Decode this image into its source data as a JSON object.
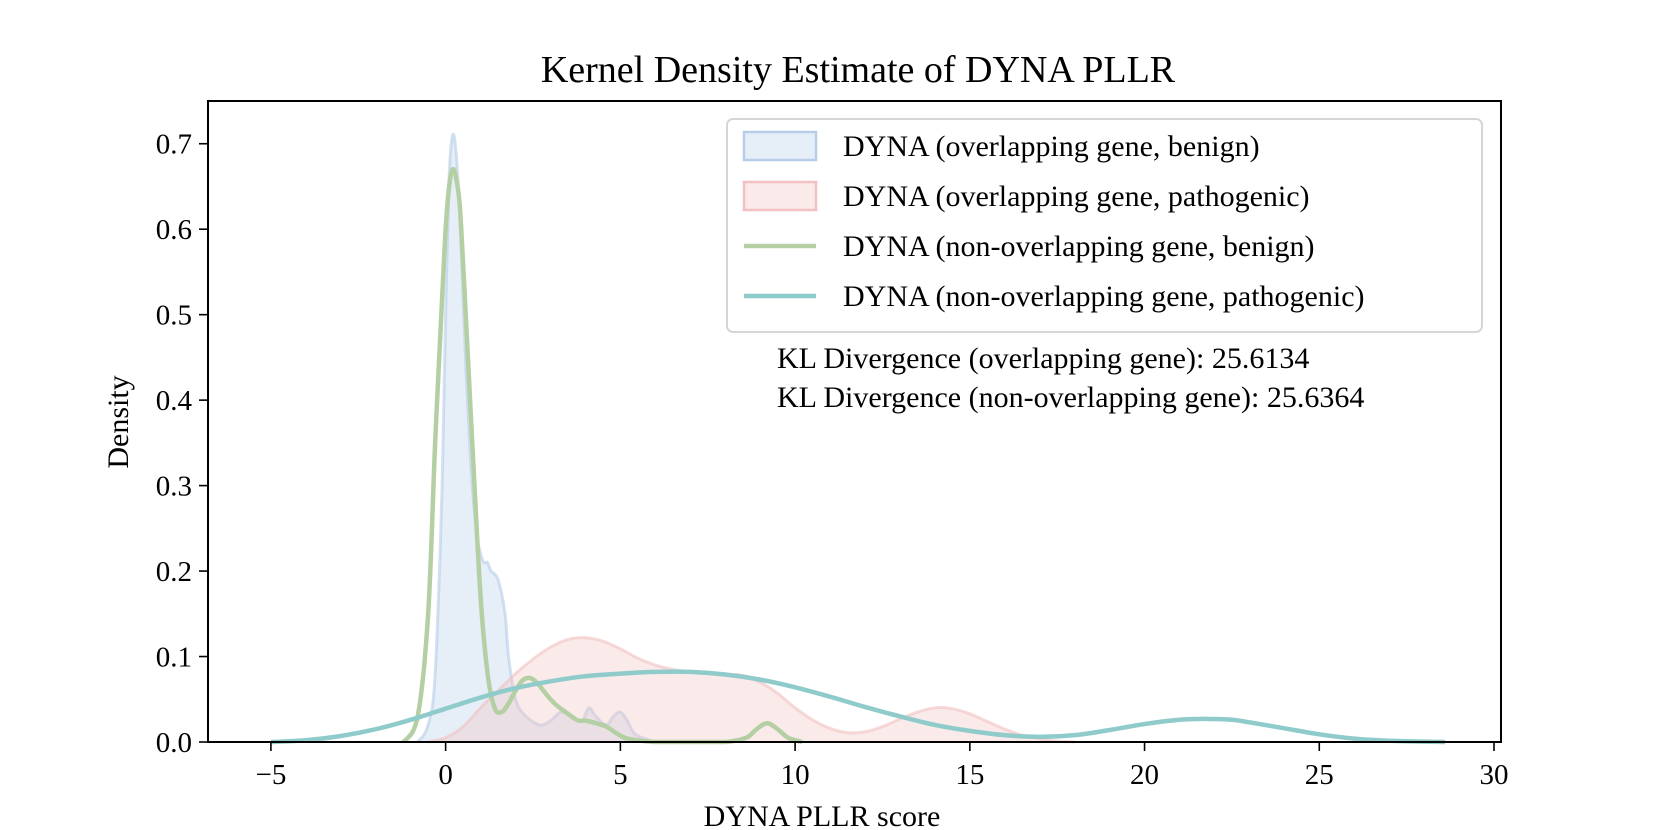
{
  "chart_data": {
    "type": "area",
    "title": "Kernel Density Estimate of DYNA PLLR",
    "xlabel": "DYNA PLLR score",
    "ylabel": "Density",
    "xlim": [
      -6.8,
      30.2
    ],
    "ylim": [
      0,
      0.75
    ],
    "xticks": [
      -5,
      0,
      5,
      10,
      15,
      20,
      25,
      30
    ],
    "yticks": [
      0.0,
      0.1,
      0.2,
      0.3,
      0.4,
      0.5,
      0.6,
      0.7
    ],
    "xtick_labels": [
      "−5",
      "0",
      "5",
      "10",
      "15",
      "20",
      "25",
      "30"
    ],
    "ytick_labels": [
      "0.0",
      "0.1",
      "0.2",
      "0.3",
      "0.4",
      "0.5",
      "0.6",
      "0.7"
    ],
    "grid": false,
    "legend_position": "top-right",
    "annotations": [
      "KL Divergence (overlapping gene): 25.6134",
      "KL Divergence (non-overlapping gene): 25.6364"
    ],
    "series": [
      {
        "name": "DYNA (overlapping gene, benign)",
        "style": "filled",
        "color": "#b8cde8",
        "x": [
          -0.8,
          -0.5,
          -0.3,
          -0.1,
          0.0,
          0.1,
          0.2,
          0.3,
          0.4,
          0.5,
          0.6,
          0.7,
          0.8,
          0.9,
          1.0,
          1.1,
          1.2,
          1.3,
          1.5,
          1.7,
          1.8,
          2.0,
          2.3,
          2.7,
          3.0,
          3.3,
          3.6,
          3.9,
          4.1,
          4.3,
          4.6,
          4.8,
          5.0,
          5.2,
          5.4,
          5.7,
          6.0
        ],
        "y": [
          0.0,
          0.02,
          0.08,
          0.3,
          0.5,
          0.66,
          0.71,
          0.69,
          0.62,
          0.52,
          0.42,
          0.34,
          0.28,
          0.24,
          0.22,
          0.21,
          0.21,
          0.2,
          0.19,
          0.15,
          0.1,
          0.05,
          0.03,
          0.02,
          0.025,
          0.035,
          0.03,
          0.025,
          0.04,
          0.03,
          0.02,
          0.03,
          0.035,
          0.025,
          0.01,
          0.004,
          0.0
        ]
      },
      {
        "name": "DYNA (overlapping gene, pathogenic)",
        "style": "filled",
        "color": "#f2c2c2",
        "x": [
          -0.5,
          0.0,
          0.5,
          1.0,
          1.5,
          2.0,
          2.5,
          3.0,
          3.5,
          4.0,
          4.5,
          5.0,
          5.5,
          6.0,
          6.5,
          7.0,
          7.5,
          8.0,
          8.5,
          9.0,
          9.5,
          10.0,
          10.5,
          11.0,
          11.5,
          12.0,
          12.5,
          13.0,
          13.5,
          14.0,
          14.5,
          15.0,
          15.5,
          16.0,
          16.5,
          17.0,
          17.5,
          18.0
        ],
        "y": [
          0.0,
          0.005,
          0.018,
          0.04,
          0.06,
          0.08,
          0.097,
          0.111,
          0.12,
          0.122,
          0.118,
          0.109,
          0.098,
          0.09,
          0.085,
          0.082,
          0.08,
          0.079,
          0.078,
          0.07,
          0.057,
          0.04,
          0.026,
          0.016,
          0.011,
          0.012,
          0.018,
          0.027,
          0.035,
          0.04,
          0.039,
          0.033,
          0.024,
          0.015,
          0.008,
          0.004,
          0.001,
          0.0
        ]
      },
      {
        "name": "DYNA (non-overlapping gene, benign)",
        "style": "line",
        "color": "#b4cfa4",
        "x": [
          -1.2,
          -0.8,
          -0.5,
          -0.3,
          -0.1,
          0.0,
          0.1,
          0.2,
          0.3,
          0.4,
          0.5,
          0.6,
          0.8,
          1.0,
          1.2,
          1.4,
          1.6,
          1.8,
          2.0,
          2.2,
          2.4,
          2.6,
          2.8,
          3.0,
          3.2,
          3.4,
          3.6,
          3.8,
          4.0,
          4.3,
          4.6,
          4.9,
          5.2,
          6.0,
          7.0,
          8.0,
          8.6,
          8.9,
          9.2,
          9.5,
          9.8,
          10.2
        ],
        "y": [
          0.0,
          0.03,
          0.15,
          0.35,
          0.52,
          0.6,
          0.65,
          0.67,
          0.66,
          0.63,
          0.56,
          0.48,
          0.32,
          0.17,
          0.08,
          0.04,
          0.035,
          0.045,
          0.06,
          0.072,
          0.075,
          0.07,
          0.06,
          0.05,
          0.042,
          0.036,
          0.03,
          0.025,
          0.025,
          0.022,
          0.018,
          0.01,
          0.004,
          0.0,
          0.0,
          0.0,
          0.005,
          0.015,
          0.022,
          0.015,
          0.005,
          0.0
        ]
      },
      {
        "name": "DYNA (non-overlapping gene, pathogenic)",
        "style": "line",
        "color": "#8ecbca",
        "x": [
          -5.0,
          -4.0,
          -3.0,
          -2.0,
          -1.0,
          0.0,
          1.0,
          2.0,
          3.0,
          4.0,
          5.0,
          6.0,
          7.0,
          8.0,
          9.0,
          10.0,
          11.0,
          12.0,
          13.0,
          14.0,
          15.0,
          16.0,
          17.0,
          18.0,
          19.0,
          20.0,
          21.0,
          21.7,
          22.5,
          23.0,
          24.0,
          25.0,
          26.0,
          27.0,
          28.0,
          28.6
        ],
        "y": [
          0.0,
          0.002,
          0.007,
          0.015,
          0.026,
          0.039,
          0.052,
          0.063,
          0.071,
          0.077,
          0.08,
          0.082,
          0.082,
          0.079,
          0.073,
          0.064,
          0.053,
          0.041,
          0.03,
          0.02,
          0.013,
          0.008,
          0.006,
          0.008,
          0.014,
          0.021,
          0.026,
          0.027,
          0.026,
          0.023,
          0.016,
          0.009,
          0.004,
          0.0015,
          0.0004,
          0.0
        ]
      }
    ]
  }
}
